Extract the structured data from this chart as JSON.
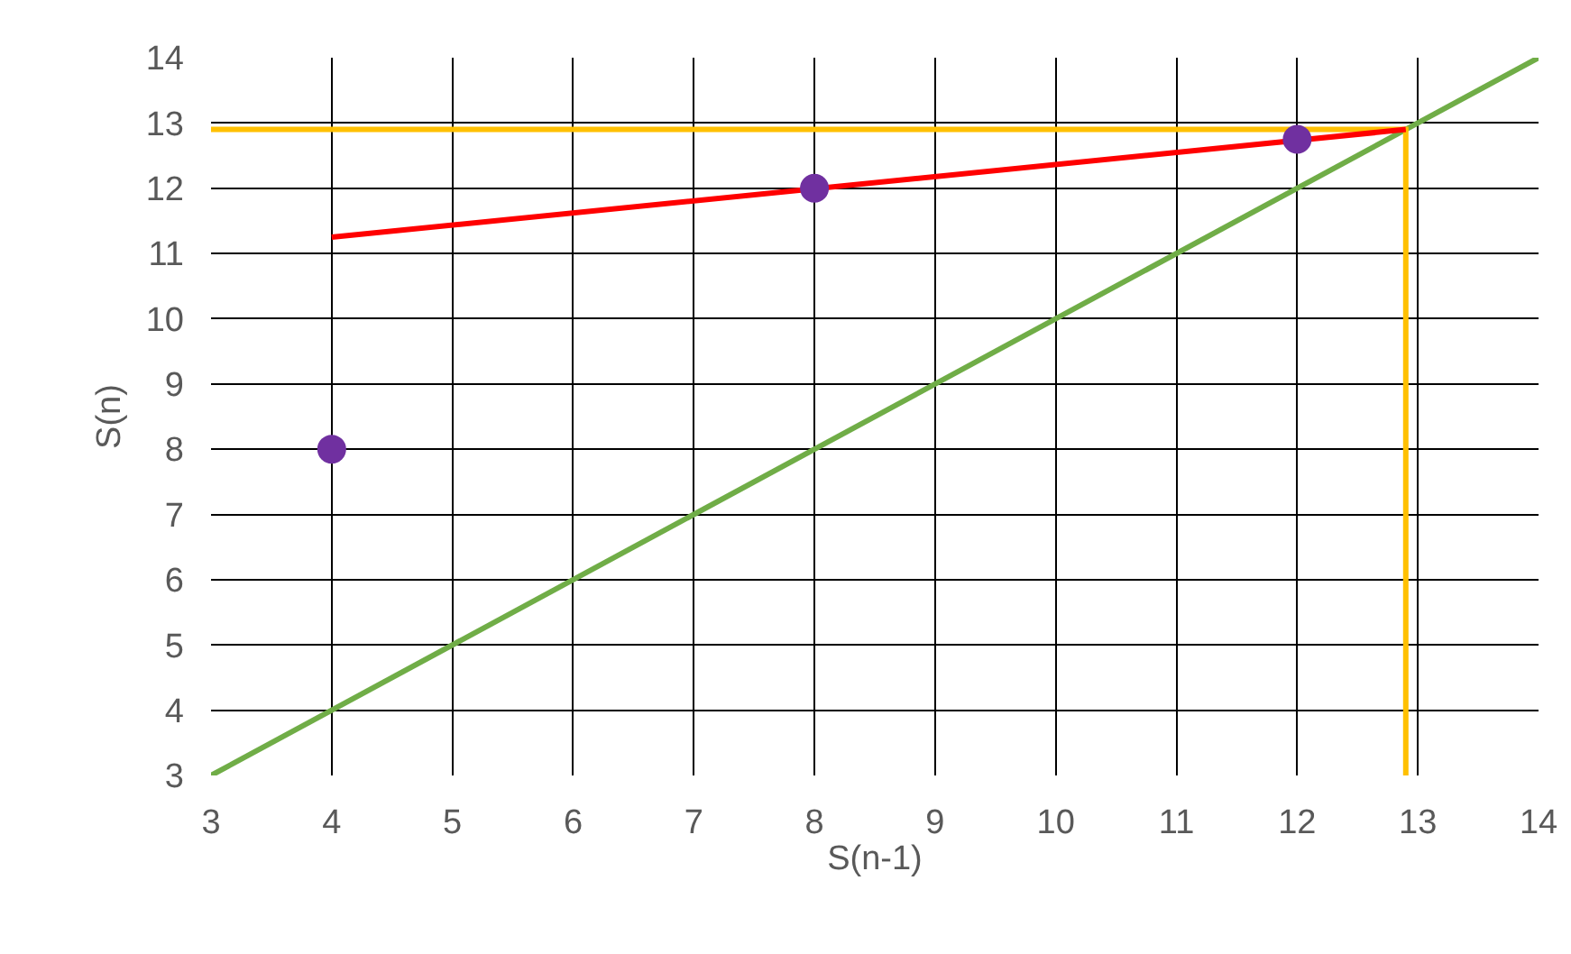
{
  "chart_data": {
    "type": "line",
    "xlabel": "S(n-1)",
    "ylabel": "S(n)",
    "xlim": [
      3,
      14
    ],
    "ylim": [
      3,
      14
    ],
    "xticks": [
      3,
      4,
      5,
      6,
      7,
      8,
      9,
      10,
      11,
      12,
      13,
      14
    ],
    "yticks": [
      3,
      4,
      5,
      6,
      7,
      8,
      9,
      10,
      11,
      12,
      13,
      14
    ],
    "grid": true,
    "series": [
      {
        "color": "#70ad47",
        "x": [
          3,
          14
        ],
        "values": [
          3,
          14
        ],
        "marker": "none"
      },
      {
        "color": "#ffc000",
        "x": [
          3,
          12.9,
          12.9
        ],
        "values": [
          12.9,
          12.9,
          3
        ],
        "marker": "none"
      },
      {
        "color": "#ff0000",
        "x": [
          4,
          12.9
        ],
        "values": [
          11.25,
          12.9
        ],
        "marker": "none"
      },
      {
        "type": "scatter",
        "color": "#7030a0",
        "x": [
          4,
          8,
          12
        ],
        "values": [
          8,
          12,
          12.75
        ],
        "marker": "circle"
      }
    ]
  }
}
